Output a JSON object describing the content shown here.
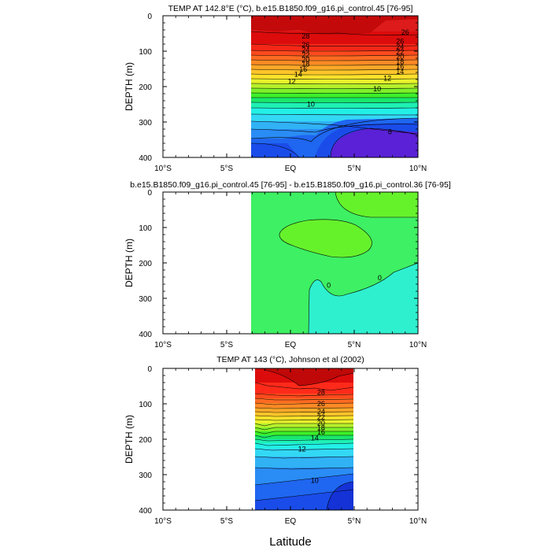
{
  "figure": {
    "xlabel": "Latitude"
  },
  "chart_data": [
    {
      "type": "heatmap",
      "title": "TEMP AT 142.8°E (°C), b.e15.B1850.f09_g16.pi_control.45 [76-95]",
      "xlabel": "Latitude",
      "ylabel": "DEPTH (m)",
      "x_tick_labels": [
        "10°S",
        "5°S",
        "EQ",
        "5°N",
        "10°N"
      ],
      "x_ticks": [
        -10,
        -5,
        0,
        5,
        10
      ],
      "xlim": [
        -10,
        10
      ],
      "y_tick_labels": [
        "0",
        "100",
        "200",
        "300",
        "400"
      ],
      "y_ticks": [
        0,
        100,
        200,
        300,
        400
      ],
      "ylim": [
        400,
        0
      ],
      "data_x_range": [
        -2.8,
        10
      ],
      "contour_interval": 2,
      "contour_labels": [
        {
          "text": "28",
          "x": 1.2,
          "y": 58
        },
        {
          "text": "26",
          "x": 9.0,
          "y": 47
        },
        {
          "text": "26",
          "x": 1.2,
          "y": 82
        },
        {
          "text": "26",
          "x": 8.6,
          "y": 72
        },
        {
          "text": "24",
          "x": 1.2,
          "y": 97
        },
        {
          "text": "24",
          "x": 8.6,
          "y": 88
        },
        {
          "text": "22",
          "x": 1.2,
          "y": 111
        },
        {
          "text": "22",
          "x": 8.6,
          "y": 102
        },
        {
          "text": "20",
          "x": 1.2,
          "y": 124
        },
        {
          "text": "20",
          "x": 8.6,
          "y": 116
        },
        {
          "text": "18",
          "x": 1.2,
          "y": 137
        },
        {
          "text": "18",
          "x": 8.6,
          "y": 130
        },
        {
          "text": "16",
          "x": 1.0,
          "y": 151
        },
        {
          "text": "16",
          "x": 8.6,
          "y": 143
        },
        {
          "text": "14",
          "x": 0.6,
          "y": 166
        },
        {
          "text": "14",
          "x": 8.6,
          "y": 158
        },
        {
          "text": "12",
          "x": 0.1,
          "y": 186
        },
        {
          "text": "12",
          "x": 7.6,
          "y": 177
        },
        {
          "text": "10",
          "x": 6.8,
          "y": 207
        },
        {
          "text": "10",
          "x": 1.6,
          "y": 250
        },
        {
          "text": "8",
          "x": 7.8,
          "y": 328
        }
      ]
    },
    {
      "type": "heatmap",
      "title": "b.e15.B1850.f09_g16.pi_control.45 [76-95] - b.e15.B1850.f09_g16.pi_control.36 [76-95]",
      "xlabel": "Latitude",
      "ylabel": "DEPTH (m)",
      "x_tick_labels": [
        "10°S",
        "5°S",
        "EQ",
        "5°N",
        "10°N"
      ],
      "x_ticks": [
        -10,
        -5,
        0,
        5,
        10
      ],
      "xlim": [
        -10,
        10
      ],
      "y_tick_labels": [
        "0",
        "100",
        "200",
        "300",
        "400"
      ],
      "y_ticks": [
        0,
        100,
        200,
        300,
        400
      ],
      "ylim": [
        400,
        0
      ],
      "data_x_range": [
        -2.8,
        10
      ],
      "contour_labels": [
        {
          "text": "0",
          "x": 3.0,
          "y": 263
        },
        {
          "text": "0",
          "x": 7.0,
          "y": 242
        }
      ]
    },
    {
      "type": "heatmap",
      "title": "TEMP AT 143 (°C), Johnson et al (2002)",
      "xlabel": "Latitude",
      "ylabel": "DEPTH (m)",
      "x_tick_labels": [
        "10°S",
        "5°S",
        "EQ",
        "5°N",
        "10°N"
      ],
      "x_ticks": [
        -10,
        -5,
        0,
        5,
        10
      ],
      "xlim": [
        -10,
        10
      ],
      "y_tick_labels": [
        "0",
        "100",
        "200",
        "300",
        "400"
      ],
      "y_ticks": [
        0,
        100,
        200,
        300,
        400
      ],
      "ylim": [
        400,
        0
      ],
      "data_x_range": [
        -2.5,
        5
      ],
      "contour_interval": 1,
      "contour_labels": [
        {
          "text": "28",
          "x": 2.4,
          "y": 68
        },
        {
          "text": "26",
          "x": 2.4,
          "y": 100
        },
        {
          "text": "24",
          "x": 2.4,
          "y": 122
        },
        {
          "text": "22",
          "x": 2.4,
          "y": 138
        },
        {
          "text": "20",
          "x": 2.4,
          "y": 154
        },
        {
          "text": "18",
          "x": 2.4,
          "y": 168
        },
        {
          "text": "16",
          "x": 2.4,
          "y": 180
        },
        {
          "text": "14",
          "x": 1.9,
          "y": 197
        },
        {
          "text": "12",
          "x": 0.9,
          "y": 228
        },
        {
          "text": "10",
          "x": 1.9,
          "y": 317
        }
      ]
    }
  ]
}
